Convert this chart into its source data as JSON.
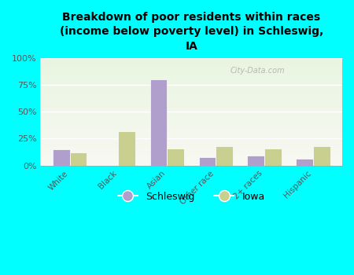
{
  "title": "Breakdown of poor residents within races\n(income below poverty level) in Schleswig,\nIA",
  "categories": [
    "White",
    "Black",
    "Asian",
    "Other race",
    "2+ races",
    "Hispanic"
  ],
  "schleswig_values": [
    15,
    0,
    80,
    8,
    9,
    6
  ],
  "iowa_values": [
    12,
    32,
    16,
    18,
    16,
    18
  ],
  "schleswig_color": "#b09fcc",
  "iowa_color": "#c8cf8f",
  "background_color": "#00ffff",
  "plot_bg_color_bottom": "#e8f5e0",
  "plot_bg_color_top": "#f8f8f2",
  "ylabel_ticks": [
    "0%",
    "25%",
    "50%",
    "75%",
    "100%"
  ],
  "ytick_values": [
    0,
    25,
    50,
    75,
    100
  ],
  "ylim": [
    0,
    100
  ],
  "bar_width": 0.35,
  "legend_labels": [
    "Schleswig",
    "Iowa"
  ],
  "watermark": "City-Data.com"
}
